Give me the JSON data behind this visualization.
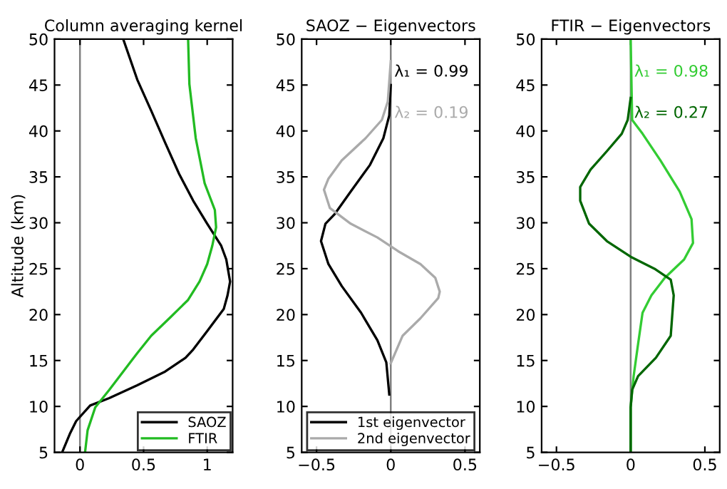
{
  "chart_data": [
    {
      "type": "line",
      "title": "Column averaging kernel",
      "ylabel": "Altitude (km)",
      "xlim": [
        -0.2,
        1.2
      ],
      "xticks": [
        0,
        0.5,
        1
      ],
      "ylim": [
        5,
        50
      ],
      "yticks": [
        5,
        10,
        15,
        20,
        25,
        30,
        35,
        40,
        45,
        50
      ],
      "legend": "bottom right",
      "grid": false,
      "ref_lines": [
        {
          "axis": "x",
          "value": 0,
          "color": "#808080"
        }
      ],
      "series": [
        {
          "name": "SAOZ",
          "color": "#000000",
          "x": [
            0.34,
            0.45,
            0.56,
            0.67,
            0.78,
            0.89,
            1.0,
            1.11,
            1.15,
            1.18,
            1.16,
            1.13,
            1.0,
            0.89,
            0.83,
            0.67,
            0.45,
            0.23,
            0.08,
            -0.03,
            -0.08,
            -0.14
          ],
          "values": [
            50,
            45.6,
            42.2,
            38.7,
            35.3,
            32.4,
            29.9,
            27.5,
            26,
            23.6,
            22.1,
            20.6,
            18.2,
            16.2,
            15.3,
            13.8,
            12.3,
            10.9,
            10.1,
            8.4,
            7,
            5
          ]
        },
        {
          "name": "FTIR",
          "color": "#22bb22",
          "x": [
            0.85,
            0.86,
            0.91,
            0.98,
            1.06,
            1.07,
            1.04,
            1.0,
            0.94,
            0.85,
            0.71,
            0.56,
            0.45,
            0.34,
            0.23,
            0.12,
            0.06,
            0.04
          ],
          "values": [
            50,
            45.1,
            39.2,
            34.3,
            31.4,
            29.5,
            27.5,
            25.5,
            23.6,
            21.6,
            19.7,
            17.7,
            15.8,
            13.8,
            11.8,
            9.9,
            7.4,
            5
          ]
        }
      ]
    },
    {
      "type": "line",
      "title": "SAOZ − Eigenvectors",
      "xlim": [
        -0.6,
        0.6
      ],
      "xticks": [
        {
          "value": -0.5,
          "label": "−0.5"
        },
        0,
        0.5
      ],
      "ylim": [
        5,
        50
      ],
      "yticks": [
        5,
        10,
        15,
        20,
        25,
        30,
        35,
        40,
        45,
        50
      ],
      "legend": "bottom",
      "grid": false,
      "ref_lines": [
        {
          "axis": "x",
          "value": 0,
          "color": "#808080"
        }
      ],
      "annotations": [
        "λ₁ = 0.99",
        "λ₂ = 0.19"
      ],
      "series": [
        {
          "name": "1st eigenvector",
          "color": "#000000",
          "x": [
            0,
            -0.01,
            -0.05,
            -0.14,
            -0.27,
            -0.38,
            -0.44,
            -0.47,
            -0.42,
            -0.33,
            -0.2,
            -0.09,
            -0.03,
            -0.01
          ],
          "values": [
            45,
            41.7,
            39.2,
            36.3,
            33.4,
            30.9,
            29.9,
            28,
            25.5,
            23.1,
            20.2,
            17.2,
            14.8,
            11.3
          ]
        },
        {
          "name": "2nd eigenvector",
          "color": "#aaaaaa",
          "x": [
            0,
            -0.02,
            -0.06,
            -0.17,
            -0.33,
            -0.42,
            -0.45,
            -0.41,
            -0.27,
            -0.09,
            0.05,
            0.2,
            0.3,
            0.33,
            0.32,
            0.2,
            0.08,
            0
          ],
          "values": [
            47.6,
            43.2,
            41.2,
            39.2,
            36.8,
            34.8,
            33.6,
            31.6,
            29.9,
            28.4,
            26.9,
            25.5,
            24,
            22.5,
            21.8,
            19.6,
            17.7,
            14.7
          ]
        }
      ]
    },
    {
      "type": "line",
      "title": "FTIR − Eigenvectors",
      "xlim": [
        -0.6,
        0.6
      ],
      "xticks": [
        {
          "value": -0.5,
          "label": "−0.5"
        },
        0,
        0.5
      ],
      "ylim": [
        5,
        50
      ],
      "yticks": [
        5,
        10,
        15,
        20,
        25,
        30,
        35,
        40,
        45,
        50
      ],
      "grid": false,
      "ref_lines": [
        {
          "axis": "x",
          "value": 0,
          "color": "#808080"
        }
      ],
      "annotations": [
        "λ₁ = 0.98",
        "λ₂ = 0.27"
      ],
      "series": [
        {
          "color": "#33cc33",
          "x": [
            0,
            0.01,
            0.08,
            0.2,
            0.33,
            0.41,
            0.42,
            0.36,
            0.23,
            0.14,
            0.08,
            0.05,
            0.02,
            0,
            0
          ],
          "values": [
            50,
            41.2,
            39.7,
            36.8,
            33.4,
            30.4,
            27.8,
            26,
            24,
            22.1,
            20.2,
            16.8,
            13.3,
            9.9,
            5
          ]
        },
        {
          "color": "#006600",
          "x": [
            0,
            -0.02,
            -0.06,
            -0.16,
            -0.27,
            -0.34,
            -0.34,
            -0.28,
            -0.16,
            0,
            0.16,
            0.27,
            0.29,
            0.27,
            0.17,
            0.05,
            0.01,
            0,
            0
          ],
          "values": [
            43.6,
            41.2,
            39.7,
            37.8,
            35.8,
            33.9,
            32.4,
            29.9,
            28,
            26.3,
            25,
            23.8,
            22.1,
            17.7,
            15.3,
            13.3,
            11.8,
            9.9,
            5
          ]
        }
      ]
    }
  ]
}
